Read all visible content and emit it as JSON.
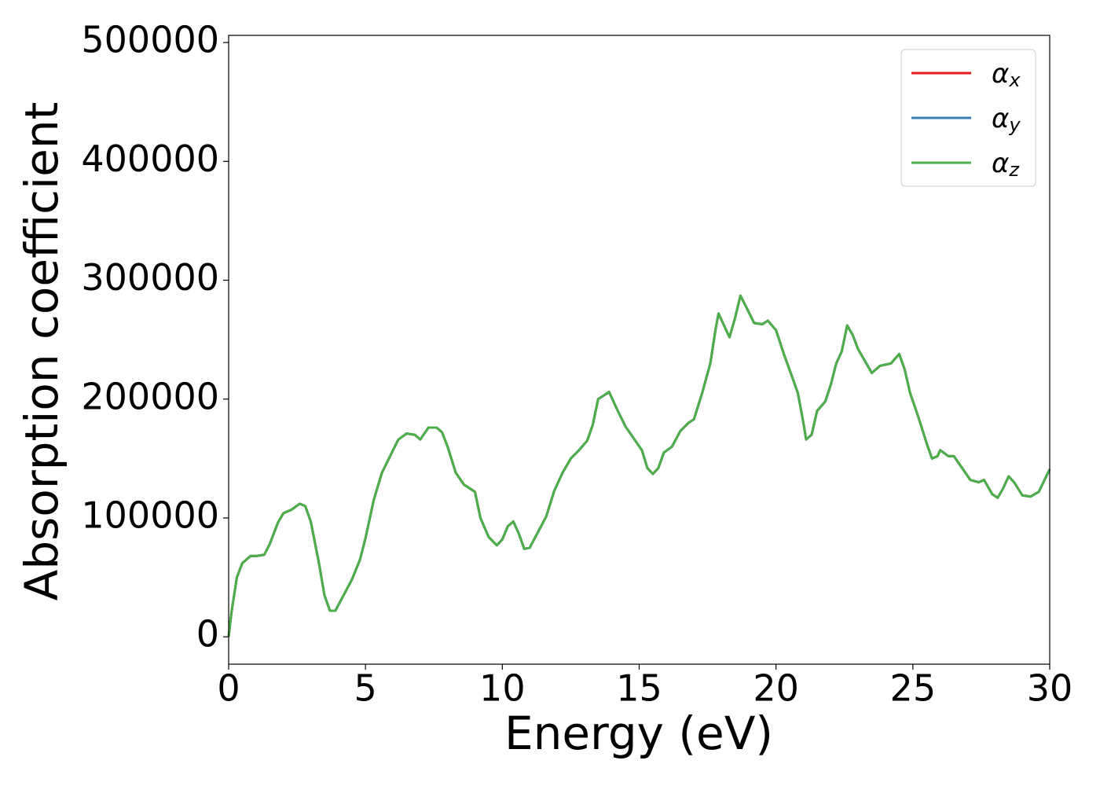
{
  "chart_data": {
    "type": "line",
    "xlabel": "Energy (eV)",
    "ylabel": "Absorption coefficient",
    "x": [
      0,
      0.1,
      0.3,
      0.5,
      0.8,
      1.0,
      1.3,
      1.5,
      1.8,
      2.0,
      2.3,
      2.6,
      2.8,
      3.0,
      3.3,
      3.5,
      3.7,
      3.9,
      4.2,
      4.5,
      4.8,
      5.0,
      5.3,
      5.6,
      5.9,
      6.2,
      6.5,
      6.8,
      7.0,
      7.3,
      7.6,
      7.8,
      8.0,
      8.3,
      8.6,
      8.8,
      9.0,
      9.2,
      9.5,
      9.8,
      10.0,
      10.2,
      10.4,
      10.6,
      10.8,
      11.0,
      11.3,
      11.6,
      11.9,
      12.2,
      12.5,
      12.8,
      13.1,
      13.3,
      13.5,
      13.7,
      13.9,
      14.2,
      14.5,
      14.8,
      15.1,
      15.3,
      15.5,
      15.7,
      15.9,
      16.2,
      16.5,
      16.8,
      17.0,
      17.3,
      17.6,
      17.8,
      17.9,
      18.1,
      18.3,
      18.5,
      18.7,
      18.9,
      19.2,
      19.5,
      19.7,
      20.0,
      20.3,
      20.6,
      20.8,
      21.0,
      21.1,
      21.3,
      21.5,
      21.8,
      22.0,
      22.2,
      22.4,
      22.6,
      22.8,
      23.0,
      23.3,
      23.5,
      23.8,
      24.2,
      24.5,
      24.7,
      24.9,
      25.2,
      25.5,
      25.7,
      25.9,
      26.0,
      26.3,
      26.5,
      26.8,
      27.1,
      27.4,
      27.6,
      27.9,
      28.1,
      28.3,
      28.5,
      28.7,
      29.0,
      29.3,
      29.6,
      30.0
    ],
    "series": [
      {
        "name": "αx",
        "color": "#e41a1c",
        "values": [
          0,
          20000,
          50000,
          62000,
          68000,
          68000,
          69000,
          78000,
          96000,
          104000,
          107000,
          112000,
          110000,
          97000,
          62000,
          35000,
          22000,
          22000,
          35000,
          48000,
          65000,
          83000,
          115000,
          138000,
          152000,
          166000,
          171000,
          170000,
          166000,
          176000,
          176000,
          172000,
          160000,
          138000,
          128000,
          125000,
          122000,
          100000,
          84000,
          77000,
          82000,
          93000,
          97000,
          87000,
          74000,
          75000,
          88000,
          101000,
          123000,
          138000,
          150000,
          157000,
          165000,
          178000,
          200000,
          203000,
          206000,
          191000,
          177000,
          167000,
          157000,
          142000,
          137000,
          142000,
          155000,
          160000,
          173000,
          180000,
          183000,
          205000,
          230000,
          260000,
          272000,
          262000,
          252000,
          268000,
          287000,
          278000,
          264000,
          263000,
          266000,
          258000,
          237000,
          218000,
          205000,
          180000,
          166000,
          170000,
          190000,
          198000,
          212000,
          230000,
          240000,
          262000,
          254000,
          242000,
          230000,
          222000,
          228000,
          230000,
          238000,
          225000,
          205000,
          185000,
          163000,
          150000,
          152000,
          157000,
          152000,
          152000,
          142000,
          132000,
          130000,
          132000,
          120000,
          117000,
          125000,
          135000,
          130000,
          119000,
          118000,
          122000,
          141000
        ]
      },
      {
        "name": "αy",
        "color": "#377eb8",
        "values": [
          0,
          20000,
          50000,
          62000,
          68000,
          68000,
          69000,
          78000,
          96000,
          104000,
          107000,
          112000,
          110000,
          97000,
          62000,
          35000,
          22000,
          22000,
          35000,
          48000,
          65000,
          83000,
          115000,
          138000,
          152000,
          166000,
          171000,
          170000,
          166000,
          176000,
          176000,
          172000,
          160000,
          138000,
          128000,
          125000,
          122000,
          100000,
          84000,
          77000,
          82000,
          93000,
          97000,
          87000,
          74000,
          75000,
          88000,
          101000,
          123000,
          138000,
          150000,
          157000,
          165000,
          178000,
          200000,
          203000,
          206000,
          191000,
          177000,
          167000,
          157000,
          142000,
          137000,
          142000,
          155000,
          160000,
          173000,
          180000,
          183000,
          205000,
          230000,
          260000,
          272000,
          262000,
          252000,
          268000,
          287000,
          278000,
          264000,
          263000,
          266000,
          258000,
          237000,
          218000,
          205000,
          180000,
          166000,
          170000,
          190000,
          198000,
          212000,
          230000,
          240000,
          262000,
          254000,
          242000,
          230000,
          222000,
          228000,
          230000,
          238000,
          225000,
          205000,
          185000,
          163000,
          150000,
          152000,
          157000,
          152000,
          152000,
          142000,
          132000,
          130000,
          132000,
          120000,
          117000,
          125000,
          135000,
          130000,
          119000,
          118000,
          122000,
          141000
        ]
      },
      {
        "name": "αz",
        "color": "#4daf4a",
        "values": [
          0,
          20000,
          50000,
          62000,
          68000,
          68000,
          69000,
          78000,
          96000,
          104000,
          107000,
          112000,
          110000,
          97000,
          62000,
          35000,
          22000,
          22000,
          35000,
          48000,
          65000,
          83000,
          115000,
          138000,
          152000,
          166000,
          171000,
          170000,
          166000,
          176000,
          176000,
          172000,
          160000,
          138000,
          128000,
          125000,
          122000,
          100000,
          84000,
          77000,
          82000,
          93000,
          97000,
          87000,
          74000,
          75000,
          88000,
          101000,
          123000,
          138000,
          150000,
          157000,
          165000,
          178000,
          200000,
          203000,
          206000,
          191000,
          177000,
          167000,
          157000,
          142000,
          137000,
          142000,
          155000,
          160000,
          173000,
          180000,
          183000,
          205000,
          230000,
          260000,
          272000,
          262000,
          252000,
          268000,
          287000,
          278000,
          264000,
          263000,
          266000,
          258000,
          237000,
          218000,
          205000,
          180000,
          166000,
          170000,
          190000,
          198000,
          212000,
          230000,
          240000,
          262000,
          254000,
          242000,
          230000,
          222000,
          228000,
          230000,
          238000,
          225000,
          205000,
          185000,
          163000,
          150000,
          152000,
          157000,
          152000,
          152000,
          142000,
          132000,
          130000,
          132000,
          120000,
          117000,
          125000,
          135000,
          130000,
          119000,
          118000,
          122000,
          141000
        ]
      }
    ],
    "xlim": [
      0,
      30
    ],
    "xticks": [
      0,
      5,
      10,
      15,
      20,
      25,
      30
    ],
    "ylim": [
      -23000,
      506000
    ],
    "yticks": [
      0,
      100000,
      200000,
      300000,
      400000,
      500000
    ],
    "grid": false,
    "legend": "upper right"
  }
}
